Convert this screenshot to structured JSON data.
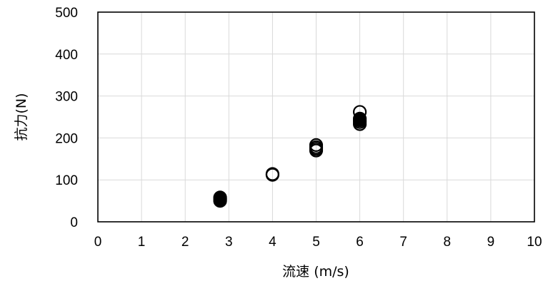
{
  "chart_data": {
    "type": "scatter",
    "title": "",
    "xlabel": "流速 (m/s)",
    "ylabel": "抗力(N)",
    "xlim": [
      0,
      10
    ],
    "ylim": [
      0,
      500
    ],
    "xticks": [
      "0",
      "1",
      "2",
      "3",
      "4",
      "5",
      "6",
      "7",
      "8",
      "9",
      "10"
    ],
    "yticks": [
      "0",
      "100",
      "200",
      "300",
      "400",
      "500"
    ],
    "grid": true,
    "legend": "none",
    "marker": "open-circle",
    "series": [
      {
        "points": [
          {
            "x": 2.8,
            "y": 50,
            "filled": false
          },
          {
            "x": 2.8,
            "y": 53,
            "filled": false
          },
          {
            "x": 2.8,
            "y": 55,
            "filled": true
          },
          {
            "x": 2.8,
            "y": 58,
            "filled": true
          },
          {
            "x": 4.0,
            "y": 112,
            "filled": false
          },
          {
            "x": 4.0,
            "y": 114,
            "filled": false
          },
          {
            "x": 5.0,
            "y": 170,
            "filled": false
          },
          {
            "x": 5.0,
            "y": 174,
            "filled": false
          },
          {
            "x": 5.0,
            "y": 178,
            "filled": false
          },
          {
            "x": 5.0,
            "y": 183,
            "filled": false
          },
          {
            "x": 6.0,
            "y": 233,
            "filled": false
          },
          {
            "x": 6.0,
            "y": 238,
            "filled": false
          },
          {
            "x": 6.0,
            "y": 242,
            "filled": true
          },
          {
            "x": 6.0,
            "y": 246,
            "filled": true
          },
          {
            "x": 6.0,
            "y": 262,
            "filled": false
          }
        ]
      }
    ]
  }
}
